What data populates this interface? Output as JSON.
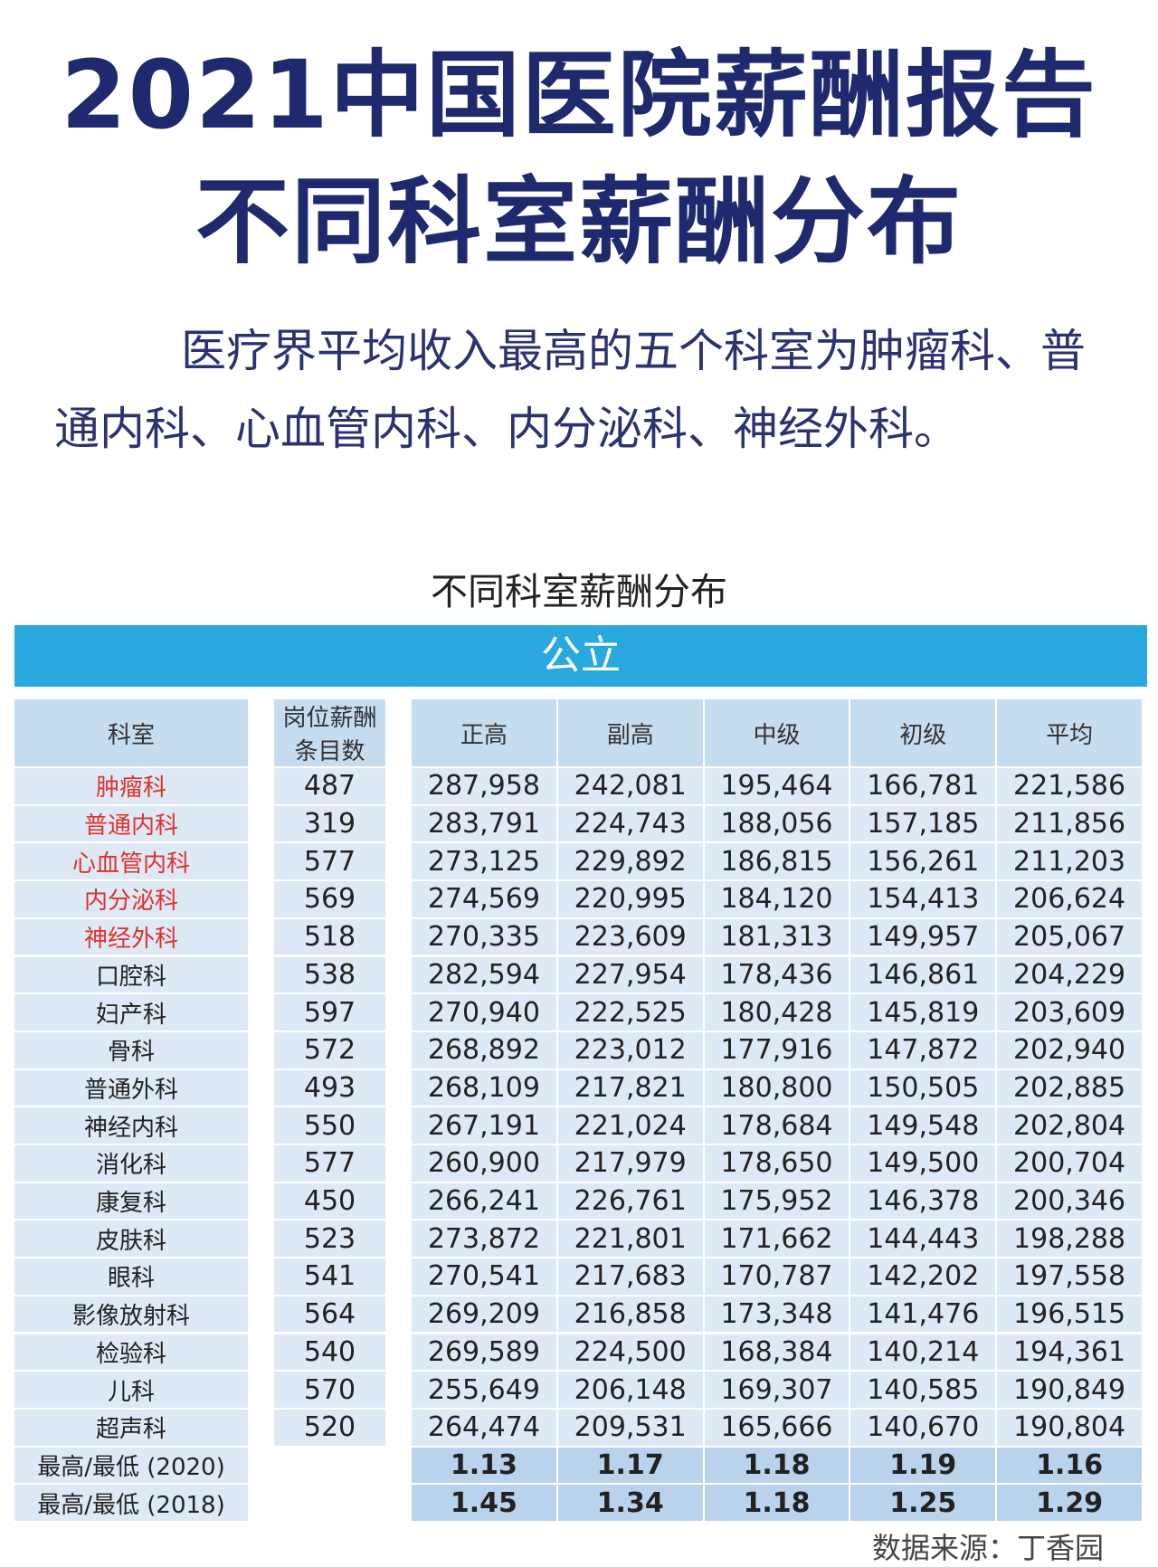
{
  "header": {
    "title": [
      "2021中国医院薪酬报告",
      "不同科室薪酬分布"
    ]
  },
  "intro": "医疗界平均收入最高的五个科室为肿瘤科、普通内科、心血管内科、内分泌科、神经外科。",
  "table": {
    "title": "不同科室薪酬分布",
    "section": "公立",
    "header": {
      "dept": "科室",
      "count": "岗位薪酬条目数",
      "levels": [
        "正高",
        "副高",
        "中级",
        "初级",
        "平均"
      ]
    },
    "rows": [
      {
        "dept": "肿瘤科",
        "highlight": true,
        "count": "487",
        "values": [
          "287,958",
          "242,081",
          "195,464",
          "166,781",
          "221,586"
        ]
      },
      {
        "dept": "普通内科",
        "highlight": true,
        "count": "319",
        "values": [
          "283,791",
          "224,743",
          "188,056",
          "157,185",
          "211,856"
        ]
      },
      {
        "dept": "心血管内科",
        "highlight": true,
        "count": "577",
        "values": [
          "273,125",
          "229,892",
          "186,815",
          "156,261",
          "211,203"
        ]
      },
      {
        "dept": "内分泌科",
        "highlight": true,
        "count": "569",
        "values": [
          "274,569",
          "220,995",
          "184,120",
          "154,413",
          "206,624"
        ]
      },
      {
        "dept": "神经外科",
        "highlight": true,
        "count": "518",
        "values": [
          "270,335",
          "223,609",
          "181,313",
          "149,957",
          "205,067"
        ]
      },
      {
        "dept": "口腔科",
        "highlight": false,
        "count": "538",
        "values": [
          "282,594",
          "227,954",
          "178,436",
          "146,861",
          "204,229"
        ]
      },
      {
        "dept": "妇产科",
        "highlight": false,
        "count": "597",
        "values": [
          "270,940",
          "222,525",
          "180,428",
          "145,819",
          "203,609"
        ]
      },
      {
        "dept": "骨科",
        "highlight": false,
        "count": "572",
        "values": [
          "268,892",
          "223,012",
          "177,916",
          "147,872",
          "202,940"
        ]
      },
      {
        "dept": "普通外科",
        "highlight": false,
        "count": "493",
        "values": [
          "268,109",
          "217,821",
          "180,800",
          "150,505",
          "202,885"
        ]
      },
      {
        "dept": "神经内科",
        "highlight": false,
        "count": "550",
        "values": [
          "267,191",
          "221,024",
          "178,684",
          "149,548",
          "202,804"
        ]
      },
      {
        "dept": "消化科",
        "highlight": false,
        "count": "577",
        "values": [
          "260,900",
          "217,979",
          "178,650",
          "149,500",
          "200,704"
        ]
      },
      {
        "dept": "康复科",
        "highlight": false,
        "count": "450",
        "values": [
          "266,241",
          "226,761",
          "175,952",
          "146,378",
          "200,346"
        ]
      },
      {
        "dept": "皮肤科",
        "highlight": false,
        "count": "523",
        "values": [
          "273,872",
          "221,801",
          "171,662",
          "144,443",
          "198,288"
        ]
      },
      {
        "dept": "眼科",
        "highlight": false,
        "count": "541",
        "values": [
          "270,541",
          "217,683",
          "170,787",
          "142,202",
          "197,558"
        ]
      },
      {
        "dept": "影像放射科",
        "highlight": false,
        "count": "564",
        "values": [
          "269,209",
          "216,858",
          "173,348",
          "141,476",
          "196,515"
        ]
      },
      {
        "dept": "检验科",
        "highlight": false,
        "count": "540",
        "values": [
          "269,589",
          "224,500",
          "168,384",
          "140,214",
          "194,361"
        ]
      },
      {
        "dept": "儿科",
        "highlight": false,
        "count": "570",
        "values": [
          "255,649",
          "206,148",
          "169,307",
          "140,585",
          "190,849"
        ]
      },
      {
        "dept": "超声科",
        "highlight": false,
        "count": "520",
        "values": [
          "264,474",
          "209,531",
          "165,666",
          "140,670",
          "190,804"
        ]
      }
    ],
    "footer": [
      {
        "label": "最高/最低 (2020)",
        "values": [
          "1.13",
          "1.17",
          "1.18",
          "1.19",
          "1.16"
        ]
      },
      {
        "label": "最高/最低 (2018)",
        "values": [
          "1.45",
          "1.34",
          "1.18",
          "1.25",
          "1.29"
        ]
      }
    ],
    "source": "数据来源：丁香园"
  }
}
